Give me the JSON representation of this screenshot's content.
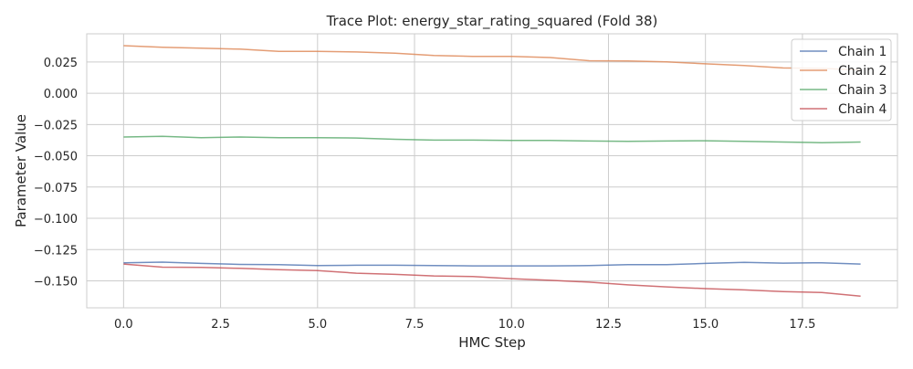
{
  "colors": {
    "Chain 1": "#4c72b0",
    "Chain 2": "#dd8452",
    "Chain 3": "#55a868",
    "Chain 4": "#c44e52",
    "grid": "#cccccc",
    "frame": "#cccccc",
    "text": "#262626"
  },
  "chart_data": {
    "type": "line",
    "title": "Trace Plot: energy_star_rating_squared (Fold 38)",
    "xlabel": "HMC Step",
    "ylabel": "Parameter Value",
    "xlim": [
      -0.95,
      19.95
    ],
    "ylim": [
      -0.1715,
      0.0475
    ],
    "xticks": [
      0.0,
      2.5,
      5.0,
      7.5,
      10.0,
      12.5,
      15.0,
      17.5
    ],
    "xtick_labels": [
      "0.0",
      "2.5",
      "5.0",
      "7.5",
      "10.0",
      "12.5",
      "15.0",
      "17.5"
    ],
    "yticks": [
      0.025,
      0.0,
      -0.025,
      -0.05,
      -0.075,
      -0.1,
      -0.125,
      -0.15
    ],
    "ytick_labels": [
      "0.025",
      "0.000",
      "−0.025",
      "−0.050",
      "−0.075",
      "−0.100",
      "−0.125",
      "−0.150"
    ],
    "grid": true,
    "legend_position": "top-right",
    "x": [
      0,
      1,
      2,
      3,
      4,
      5,
      6,
      7,
      8,
      9,
      10,
      11,
      12,
      13,
      14,
      15,
      16,
      17,
      18,
      19
    ],
    "series": [
      {
        "name": "Chain 1",
        "values": [
          -0.1355,
          -0.135,
          -0.136,
          -0.1368,
          -0.137,
          -0.1378,
          -0.1375,
          -0.1375,
          -0.1378,
          -0.138,
          -0.138,
          -0.138,
          -0.1378,
          -0.137,
          -0.137,
          -0.136,
          -0.1352,
          -0.1358,
          -0.1355,
          -0.1365
        ]
      },
      {
        "name": "Chain 2",
        "values": [
          0.038,
          0.0368,
          0.036,
          0.0352,
          0.0335,
          0.0335,
          0.033,
          0.032,
          0.0302,
          0.0295,
          0.0295,
          0.0285,
          0.026,
          0.0258,
          0.025,
          0.0235,
          0.0222,
          0.0202,
          0.0198,
          0.0186
        ]
      },
      {
        "name": "Chain 3",
        "values": [
          -0.035,
          -0.0345,
          -0.0355,
          -0.035,
          -0.0355,
          -0.0355,
          -0.0358,
          -0.0368,
          -0.0375,
          -0.0375,
          -0.0378,
          -0.0378,
          -0.0382,
          -0.0385,
          -0.0382,
          -0.038,
          -0.0385,
          -0.039,
          -0.0395,
          -0.039
        ]
      },
      {
        "name": "Chain 4",
        "values": [
          -0.1365,
          -0.139,
          -0.1392,
          -0.14,
          -0.141,
          -0.1418,
          -0.1438,
          -0.1448,
          -0.146,
          -0.1465,
          -0.1482,
          -0.1495,
          -0.151,
          -0.1532,
          -0.1548,
          -0.1562,
          -0.1572,
          -0.1585,
          -0.1592,
          -0.1622
        ]
      }
    ]
  }
}
